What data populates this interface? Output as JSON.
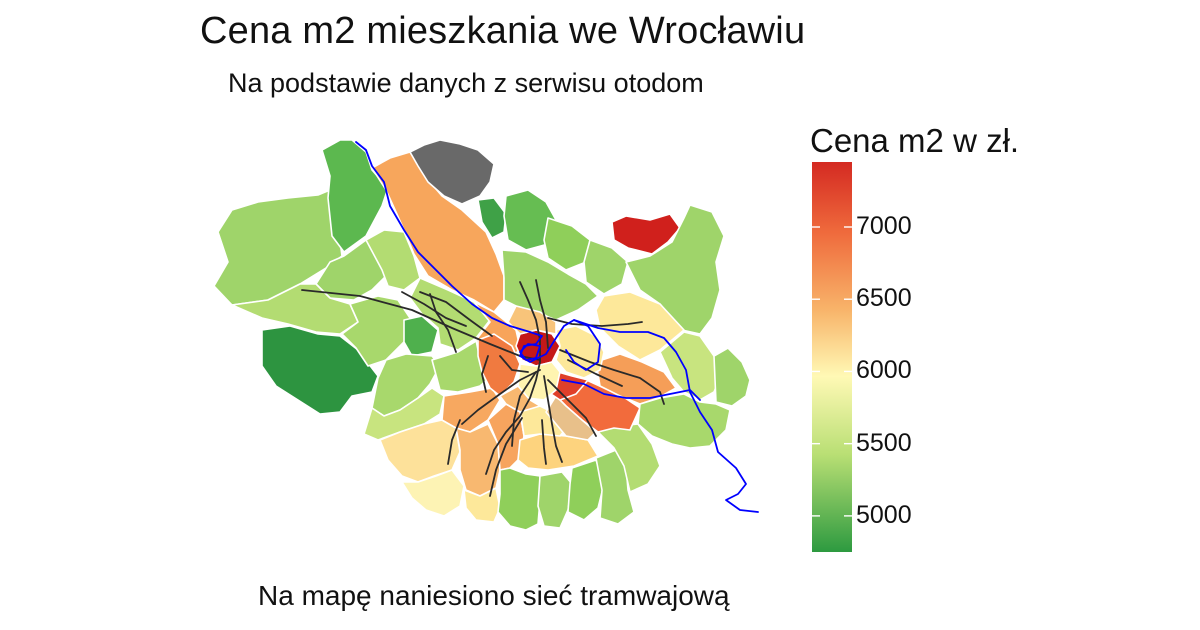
{
  "title": "Cena m2 mieszkania we Wrocławiu",
  "subtitle": "Na podstawie danych z serwisu otodom",
  "caption": "Na mapę naniesiono sieć tramwajową",
  "legend": {
    "title": "Cena m2 w zł.",
    "ticks": [
      "7000",
      "6500",
      "6000",
      "5500",
      "5000"
    ],
    "scale_min": 4750,
    "scale_max": 7450,
    "colors": {
      "low": "#2d9a40",
      "mid_low": "#8fcf5a",
      "mid": "#fff9b5",
      "mid_high": "#f8a45a",
      "high": "#d42a22",
      "no_data": "#666666"
    }
  },
  "map_colors": {
    "river": "#0000ff",
    "tram": "#222222",
    "district_border": "#ffffff"
  }
}
